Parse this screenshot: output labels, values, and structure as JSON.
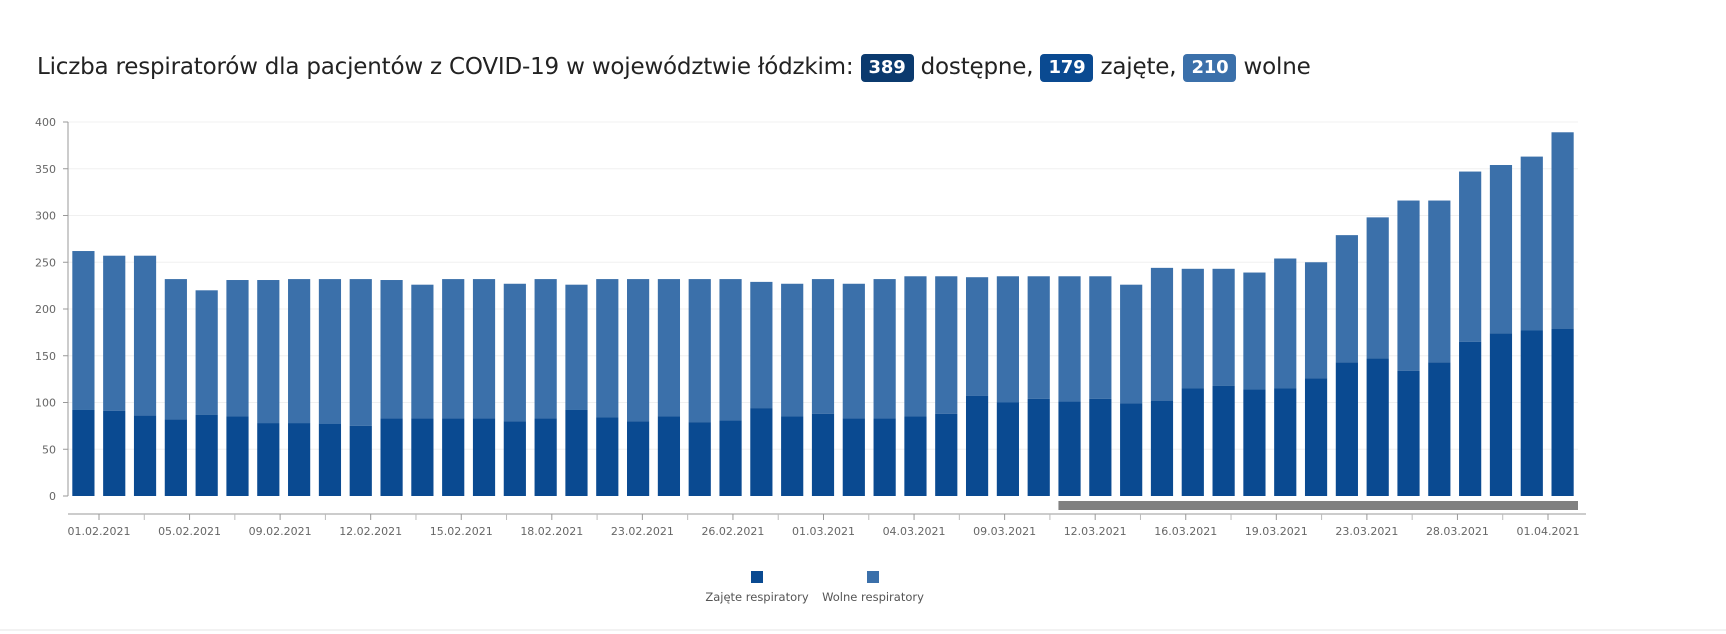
{
  "header": {
    "text_before": "Liczba respiratorów dla pacjentów z COVID-19 w województwie łódzkim:",
    "available": "389",
    "available_label": " dostępne,",
    "occupied": "179",
    "occupied_label": " zajęte,",
    "free": "210",
    "free_label": " wolne"
  },
  "colors": {
    "occupied": "#0a4a91",
    "free": "#3b70aa",
    "badge_available": "#0b3a6e",
    "badge_occupied": "#0a4a91",
    "badge_free": "#3b70aa",
    "scrollbar": "#808080"
  },
  "chart_data": {
    "type": "bar",
    "stacked": true,
    "ylim": [
      0,
      400
    ],
    "yticks": [
      0,
      50,
      100,
      150,
      200,
      250,
      300,
      350,
      400
    ],
    "xtick_labels": [
      "01.02.2021",
      "05.02.2021",
      "09.02.2021",
      "12.02.2021",
      "15.02.2021",
      "18.02.2021",
      "23.02.2021",
      "26.02.2021",
      "01.03.2021",
      "04.03.2021",
      "09.03.2021",
      "12.03.2021",
      "16.03.2021",
      "19.03.2021",
      "23.03.2021",
      "28.03.2021",
      "01.04.2021"
    ],
    "series": [
      {
        "name": "Zajęte respiratory",
        "values": [
          92,
          91,
          86,
          82,
          87,
          85,
          78,
          78,
          77,
          75,
          83,
          83,
          83,
          83,
          80,
          83,
          92,
          84,
          80,
          85,
          79,
          81,
          94,
          85,
          88,
          83,
          83,
          85,
          88,
          107,
          100,
          104,
          101,
          104,
          99,
          102,
          115,
          118,
          114,
          115,
          126,
          143,
          147,
          134,
          143,
          165,
          174,
          177,
          179
        ]
      },
      {
        "name": "Wolne respiratory",
        "values": [
          170,
          166,
          171,
          150,
          133,
          146,
          153,
          154,
          155,
          157,
          148,
          143,
          149,
          149,
          147,
          149,
          134,
          148,
          152,
          147,
          153,
          151,
          135,
          142,
          144,
          144,
          149,
          150,
          147,
          127,
          135,
          131,
          134,
          131,
          127,
          142,
          128,
          125,
          125,
          139,
          124,
          136,
          151,
          182,
          173,
          182,
          180,
          186,
          210
        ]
      }
    ],
    "legend_position": "bottom-center"
  }
}
